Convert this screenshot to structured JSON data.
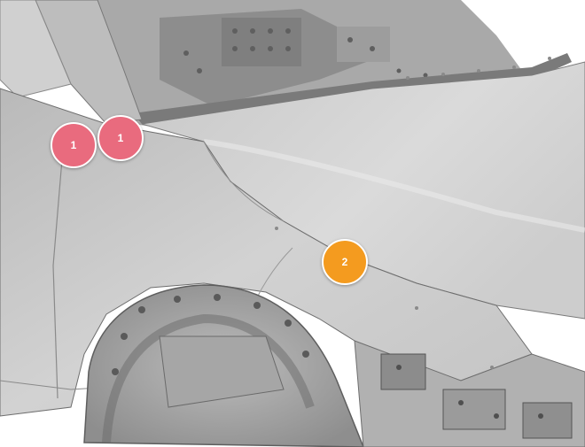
{
  "image": {
    "subject": "car-front-fender-body-panel-illustration",
    "palette": {
      "background": "#ffffff",
      "body_panel": "#c6c6c6",
      "edge_line": "#6e6e6e",
      "engine_bay": "#9a9a9a"
    }
  },
  "markers": [
    {
      "label": "1",
      "color": "#e96b7e"
    },
    {
      "label": "1",
      "color": "#e96b7e"
    },
    {
      "label": "2",
      "color": "#f49b1f"
    }
  ]
}
